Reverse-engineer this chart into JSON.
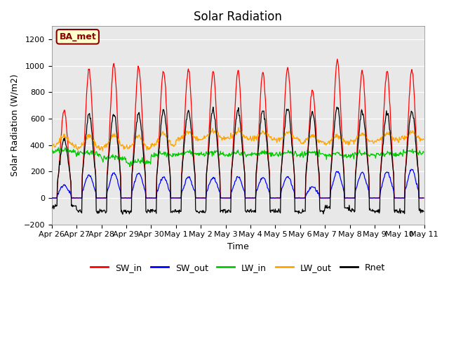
{
  "title": "Solar Radiation",
  "ylabel": "Solar Radiation (W/m2)",
  "xlabel": "Time",
  "ylim": [
    -200,
    1300
  ],
  "yticks": [
    -200,
    0,
    200,
    400,
    600,
    800,
    1000,
    1200
  ],
  "site_label": "BA_met",
  "x_tick_labels": [
    "Apr 26",
    "Apr 27",
    "Apr 28",
    "Apr 29",
    "Apr 30",
    "May 1",
    "May 2",
    "May 3",
    "May 4",
    "May 5",
    "May 6",
    "May 7",
    "May 8",
    "May 9",
    "May 10",
    "May 11"
  ],
  "num_days": 15,
  "hours_per_day": 24,
  "dt_hours": 0.5,
  "SW_in_peaks": [
    670,
    970,
    1010,
    990,
    960,
    980,
    950,
    960,
    950,
    990,
    820,
    1040,
    960,
    960,
    970
  ],
  "SW_out_peaks": [
    100,
    175,
    190,
    185,
    160,
    160,
    155,
    160,
    155,
    165,
    85,
    200,
    195,
    200,
    215
  ],
  "LW_in_base": [
    350,
    330,
    300,
    265,
    320,
    330,
    330,
    330,
    330,
    330,
    330,
    320,
    325,
    325,
    340
  ],
  "LW_out_base": [
    390,
    375,
    380,
    370,
    400,
    440,
    450,
    450,
    445,
    440,
    420,
    410,
    425,
    435,
    445
  ],
  "LW_out_bump": [
    80,
    100,
    100,
    100,
    90,
    60,
    55,
    55,
    55,
    55,
    55,
    60,
    60,
    55,
    55
  ],
  "Rnet_peaks": [
    450,
    630,
    640,
    640,
    660,
    660,
    665,
    660,
    665,
    680,
    645,
    680,
    660,
    645,
    660
  ],
  "Rnet_night": [
    -60,
    -100,
    -100,
    -100,
    -100,
    -100,
    -100,
    -100,
    -100,
    -100,
    -100,
    -70,
    -95,
    -100,
    -100
  ],
  "colors": {
    "SW_in": "#ff0000",
    "SW_out": "#0000ff",
    "LW_in": "#00cc00",
    "LW_out": "#ffa500",
    "Rnet": "#000000"
  },
  "legend_entries": [
    "SW_in",
    "SW_out",
    "LW_in",
    "LW_out",
    "Rnet"
  ],
  "background_color": "#ffffff",
  "plot_bg_color": "#e8e8e8",
  "title_fontsize": 12,
  "label_fontsize": 9,
  "tick_fontsize": 8
}
